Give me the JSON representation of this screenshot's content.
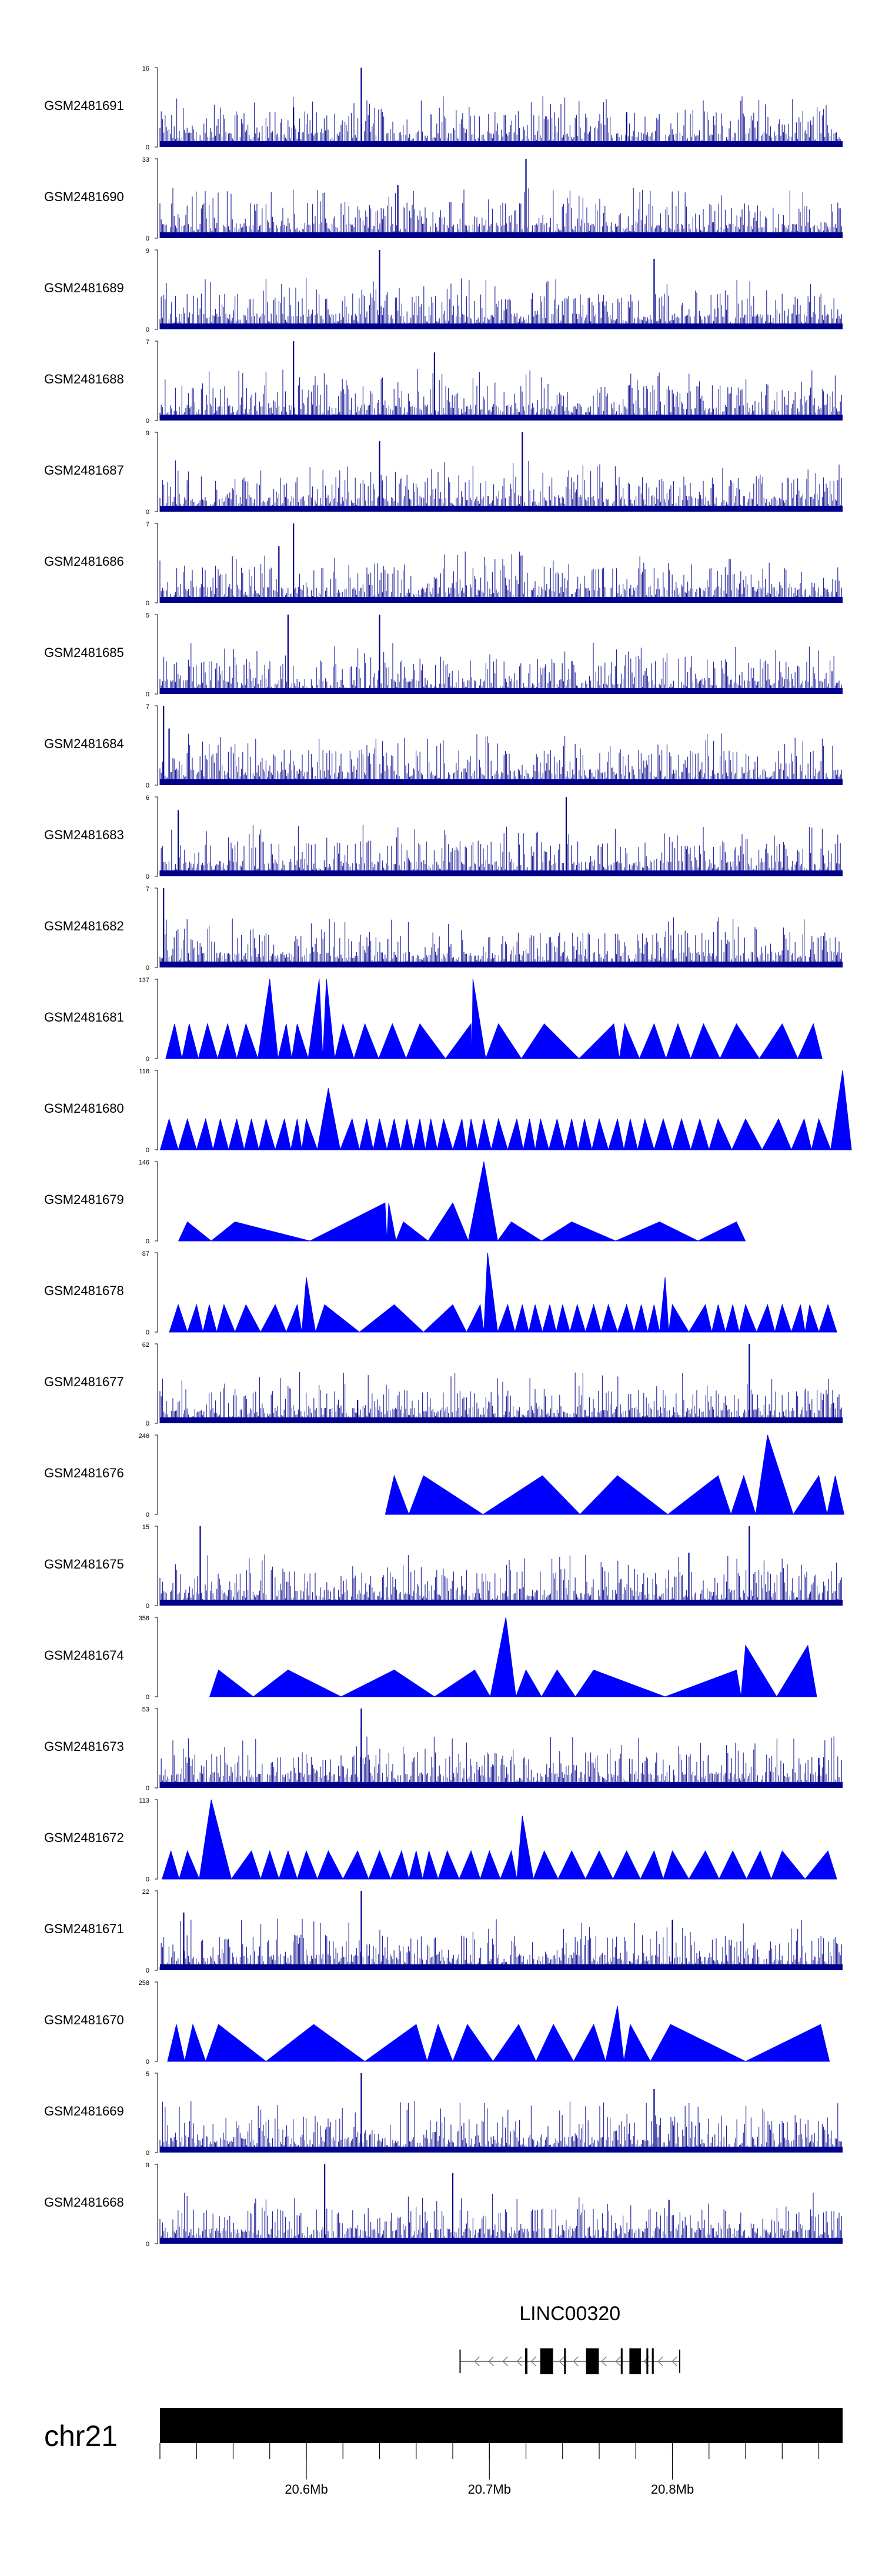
{
  "chart_data": {
    "type": "genome-browser-tracks",
    "title": "",
    "x_axis": {
      "label": "",
      "range_mb": [
        20.52,
        20.893
      ],
      "major_ticks": [
        {
          "value": 20.6,
          "label": "20.6Mb"
        },
        {
          "value": 20.7,
          "label": "20.7Mb"
        },
        {
          "value": 20.8,
          "label": "20.8Mb"
        }
      ],
      "minor_tick_step_mb": 0.02
    },
    "chromosome": {
      "label": "chr21"
    },
    "gene": {
      "label": "LINC00320",
      "start_mb": 20.684,
      "end_mb": 20.804,
      "strand": "-",
      "exons_mb": [
        [
          20.7195,
          20.7208
        ],
        [
          20.7278,
          20.7348
        ],
        [
          20.7408,
          20.7418
        ],
        [
          20.7528,
          20.7598
        ],
        [
          20.7718,
          20.7728
        ],
        [
          20.7765,
          20.7828
        ],
        [
          20.7858,
          20.7868
        ],
        [
          20.7888,
          20.7898
        ]
      ]
    },
    "tracks": [
      {
        "name": "GSM2481691",
        "ymax": 16,
        "style": "bars",
        "peaks": [
          [
            20.63,
            16
          ],
          [
            20.593,
            8
          ],
          [
            20.775,
            7
          ]
        ]
      },
      {
        "name": "GSM2481690",
        "ymax": 33,
        "style": "bars",
        "peaks": [
          [
            20.72,
            33
          ],
          [
            20.65,
            22
          ]
        ]
      },
      {
        "name": "GSM2481689",
        "ymax": 9,
        "style": "bars",
        "peaks": [
          [
            20.64,
            9
          ],
          [
            20.79,
            8
          ]
        ]
      },
      {
        "name": "GSM2481688",
        "ymax": 7,
        "style": "bars",
        "peaks": [
          [
            20.593,
            7
          ],
          [
            20.67,
            6
          ]
        ]
      },
      {
        "name": "GSM2481687",
        "ymax": 9,
        "style": "bars",
        "peaks": [
          [
            20.718,
            9
          ],
          [
            20.64,
            8
          ]
        ]
      },
      {
        "name": "GSM2481686",
        "ymax": 7,
        "style": "bars",
        "peaks": [
          [
            20.593,
            7
          ],
          [
            20.585,
            5
          ]
        ]
      },
      {
        "name": "GSM2481685",
        "ymax": 5,
        "style": "bars",
        "peaks": [
          [
            20.59,
            5
          ],
          [
            20.64,
            5
          ]
        ]
      },
      {
        "name": "GSM2481684",
        "ymax": 7,
        "style": "bars",
        "peaks": [
          [
            20.522,
            7
          ],
          [
            20.525,
            5
          ]
        ]
      },
      {
        "name": "GSM2481683",
        "ymax": 6,
        "style": "bars",
        "peaks": [
          [
            20.742,
            6
          ],
          [
            20.53,
            5
          ]
        ]
      },
      {
        "name": "GSM2481682",
        "ymax": 7,
        "style": "bars",
        "peaks": [
          [
            20.522,
            7
          ]
        ]
      },
      {
        "name": "GSM2481681",
        "ymax": 137,
        "style": "triangles",
        "peaks": [
          [
            20.528,
            60
          ],
          [
            20.536,
            60
          ],
          [
            20.546,
            60
          ],
          [
            20.557,
            60
          ],
          [
            20.567,
            60
          ],
          [
            20.58,
            137
          ],
          [
            20.589,
            60
          ],
          [
            20.595,
            60
          ],
          [
            20.607,
            137
          ],
          [
            20.611,
            137
          ],
          [
            20.62,
            60
          ],
          [
            20.632,
            60
          ],
          [
            20.647,
            60
          ],
          [
            20.662,
            60
          ],
          [
            20.69,
            60
          ],
          [
            20.691,
            137
          ],
          [
            20.705,
            60
          ],
          [
            20.73,
            60
          ],
          [
            20.768,
            60
          ],
          [
            20.774,
            60
          ],
          [
            20.79,
            60
          ],
          [
            20.803,
            60
          ],
          [
            20.817,
            60
          ],
          [
            20.835,
            60
          ],
          [
            20.86,
            60
          ],
          [
            20.877,
            60
          ]
        ]
      },
      {
        "name": "GSM2481680",
        "ymax": 116,
        "style": "triangles",
        "peaks": [
          [
            20.525,
            45
          ],
          [
            20.535,
            45
          ],
          [
            20.545,
            45
          ],
          [
            20.553,
            45
          ],
          [
            20.562,
            45
          ],
          [
            20.57,
            45
          ],
          [
            20.578,
            45
          ],
          [
            20.588,
            45
          ],
          [
            20.595,
            45
          ],
          [
            20.6,
            45
          ],
          [
            20.612,
            90
          ],
          [
            20.625,
            45
          ],
          [
            20.633,
            45
          ],
          [
            20.64,
            45
          ],
          [
            20.648,
            45
          ],
          [
            20.655,
            45
          ],
          [
            20.662,
            45
          ],
          [
            20.668,
            45
          ],
          [
            20.675,
            45
          ],
          [
            20.685,
            45
          ],
          [
            20.69,
            45
          ],
          [
            20.697,
            45
          ],
          [
            20.705,
            45
          ],
          [
            20.715,
            45
          ],
          [
            20.722,
            45
          ],
          [
            20.728,
            45
          ],
          [
            20.737,
            45
          ],
          [
            20.745,
            45
          ],
          [
            20.752,
            45
          ],
          [
            20.76,
            45
          ],
          [
            20.77,
            45
          ],
          [
            20.777,
            45
          ],
          [
            20.785,
            45
          ],
          [
            20.795,
            45
          ],
          [
            20.805,
            45
          ],
          [
            20.815,
            45
          ],
          [
            20.825,
            45
          ],
          [
            20.84,
            45
          ],
          [
            20.858,
            45
          ],
          [
            20.872,
            45
          ],
          [
            20.88,
            45
          ],
          [
            20.893,
            116
          ]
        ]
      },
      {
        "name": "GSM2481679",
        "ymax": 146,
        "style": "triangles",
        "peaks": [
          [
            20.535,
            35
          ],
          [
            20.561,
            35
          ],
          [
            20.643,
            70
          ],
          [
            20.645,
            70
          ],
          [
            20.653,
            35
          ],
          [
            20.68,
            70
          ],
          [
            20.697,
            146
          ],
          [
            20.712,
            35
          ],
          [
            20.745,
            35
          ],
          [
            20.793,
            35
          ],
          [
            20.835,
            35
          ]
        ]
      },
      {
        "name": "GSM2481678",
        "ymax": 87,
        "style": "triangles",
        "peaks": [
          [
            20.53,
            30
          ],
          [
            20.54,
            30
          ],
          [
            20.547,
            30
          ],
          [
            20.555,
            30
          ],
          [
            20.567,
            30
          ],
          [
            20.583,
            30
          ],
          [
            20.595,
            30
          ],
          [
            20.6,
            60
          ],
          [
            20.61,
            30
          ],
          [
            20.648,
            30
          ],
          [
            20.68,
            30
          ],
          [
            20.695,
            30
          ],
          [
            20.699,
            87
          ],
          [
            20.71,
            30
          ],
          [
            20.718,
            30
          ],
          [
            20.725,
            30
          ],
          [
            20.733,
            30
          ],
          [
            20.74,
            30
          ],
          [
            20.748,
            30
          ],
          [
            20.757,
            30
          ],
          [
            20.765,
            30
          ],
          [
            20.775,
            30
          ],
          [
            20.783,
            30
          ],
          [
            20.79,
            30
          ],
          [
            20.796,
            60
          ],
          [
            20.8,
            30
          ],
          [
            20.818,
            30
          ],
          [
            20.825,
            30
          ],
          [
            20.833,
            30
          ],
          [
            20.84,
            30
          ],
          [
            20.852,
            30
          ],
          [
            20.86,
            30
          ],
          [
            20.87,
            30
          ],
          [
            20.875,
            30
          ],
          [
            20.885,
            30
          ]
        ]
      },
      {
        "name": "GSM2481677",
        "ymax": 62,
        "style": "bars",
        "peaks": [
          [
            20.842,
            62
          ],
          [
            20.628,
            18
          ],
          [
            20.888,
            16
          ]
        ]
      },
      {
        "name": "GSM2481676",
        "ymax": 246,
        "style": "triangles",
        "peaks": [
          [
            20.648,
            120
          ],
          [
            20.664,
            120
          ],
          [
            20.729,
            120
          ],
          [
            20.77,
            120
          ],
          [
            20.825,
            120
          ],
          [
            20.839,
            120
          ],
          [
            20.852,
            246
          ],
          [
            20.88,
            120
          ],
          [
            20.889,
            120
          ]
        ]
      },
      {
        "name": "GSM2481675",
        "ymax": 15,
        "style": "bars",
        "peaks": [
          [
            20.542,
            15
          ],
          [
            20.842,
            15
          ],
          [
            20.809,
            10
          ]
        ]
      },
      {
        "name": "GSM2481674",
        "ymax": 356,
        "style": "triangles",
        "peaks": [
          [
            20.552,
            120
          ],
          [
            20.59,
            120
          ],
          [
            20.648,
            120
          ],
          [
            20.692,
            120
          ],
          [
            20.709,
            356
          ],
          [
            20.72,
            120
          ],
          [
            20.737,
            120
          ],
          [
            20.757,
            120
          ],
          [
            20.835,
            120
          ],
          [
            20.84,
            230
          ],
          [
            20.874,
            230
          ]
        ]
      },
      {
        "name": "GSM2481673",
        "ymax": 53,
        "style": "bars",
        "peaks": [
          [
            20.63,
            53
          ],
          [
            20.63,
            40
          ],
          [
            20.88,
            20
          ]
        ]
      },
      {
        "name": "GSM2481672",
        "ymax": 113,
        "style": "triangles",
        "peaks": [
          [
            20.526,
            40
          ],
          [
            20.535,
            40
          ],
          [
            20.548,
            113
          ],
          [
            20.57,
            40
          ],
          [
            20.58,
            40
          ],
          [
            20.59,
            40
          ],
          [
            20.6,
            40
          ],
          [
            20.612,
            40
          ],
          [
            20.628,
            40
          ],
          [
            20.64,
            40
          ],
          [
            20.652,
            40
          ],
          [
            20.66,
            40
          ],
          [
            20.667,
            40
          ],
          [
            20.677,
            40
          ],
          [
            20.69,
            40
          ],
          [
            20.7,
            40
          ],
          [
            20.712,
            40
          ],
          [
            20.718,
            90
          ],
          [
            20.73,
            40
          ],
          [
            20.745,
            40
          ],
          [
            20.76,
            40
          ],
          [
            20.775,
            40
          ],
          [
            20.79,
            40
          ],
          [
            20.8,
            40
          ],
          [
            20.818,
            40
          ],
          [
            20.833,
            40
          ],
          [
            20.848,
            40
          ],
          [
            20.86,
            40
          ],
          [
            20.885,
            40
          ]
        ]
      },
      {
        "name": "GSM2481671",
        "ymax": 22,
        "style": "bars",
        "peaks": [
          [
            20.63,
            22
          ],
          [
            20.533,
            16
          ],
          [
            20.8,
            14
          ]
        ]
      },
      {
        "name": "GSM2481670",
        "ymax": 258,
        "style": "triangles",
        "peaks": [
          [
            20.529,
            120
          ],
          [
            20.538,
            120
          ],
          [
            20.552,
            120
          ],
          [
            20.604,
            120
          ],
          [
            20.66,
            120
          ],
          [
            20.672,
            120
          ],
          [
            20.688,
            120
          ],
          [
            20.716,
            120
          ],
          [
            20.735,
            120
          ],
          [
            20.757,
            120
          ],
          [
            20.77,
            180
          ],
          [
            20.777,
            120
          ],
          [
            20.799,
            120
          ],
          [
            20.881,
            120
          ]
        ]
      },
      {
        "name": "GSM2481669",
        "ymax": 5,
        "style": "bars",
        "peaks": [
          [
            20.63,
            5
          ],
          [
            20.79,
            4
          ]
        ]
      },
      {
        "name": "GSM2481668",
        "ymax": 9,
        "style": "bars",
        "peaks": [
          [
            20.61,
            9
          ],
          [
            20.68,
            8
          ]
        ]
      }
    ]
  },
  "colors": {
    "signal_bar": "#00008b",
    "signal_triangle": "#0000ff",
    "axis": "#000000",
    "chromosome": "#000000",
    "gene": "#000000",
    "intron": "#808080"
  }
}
